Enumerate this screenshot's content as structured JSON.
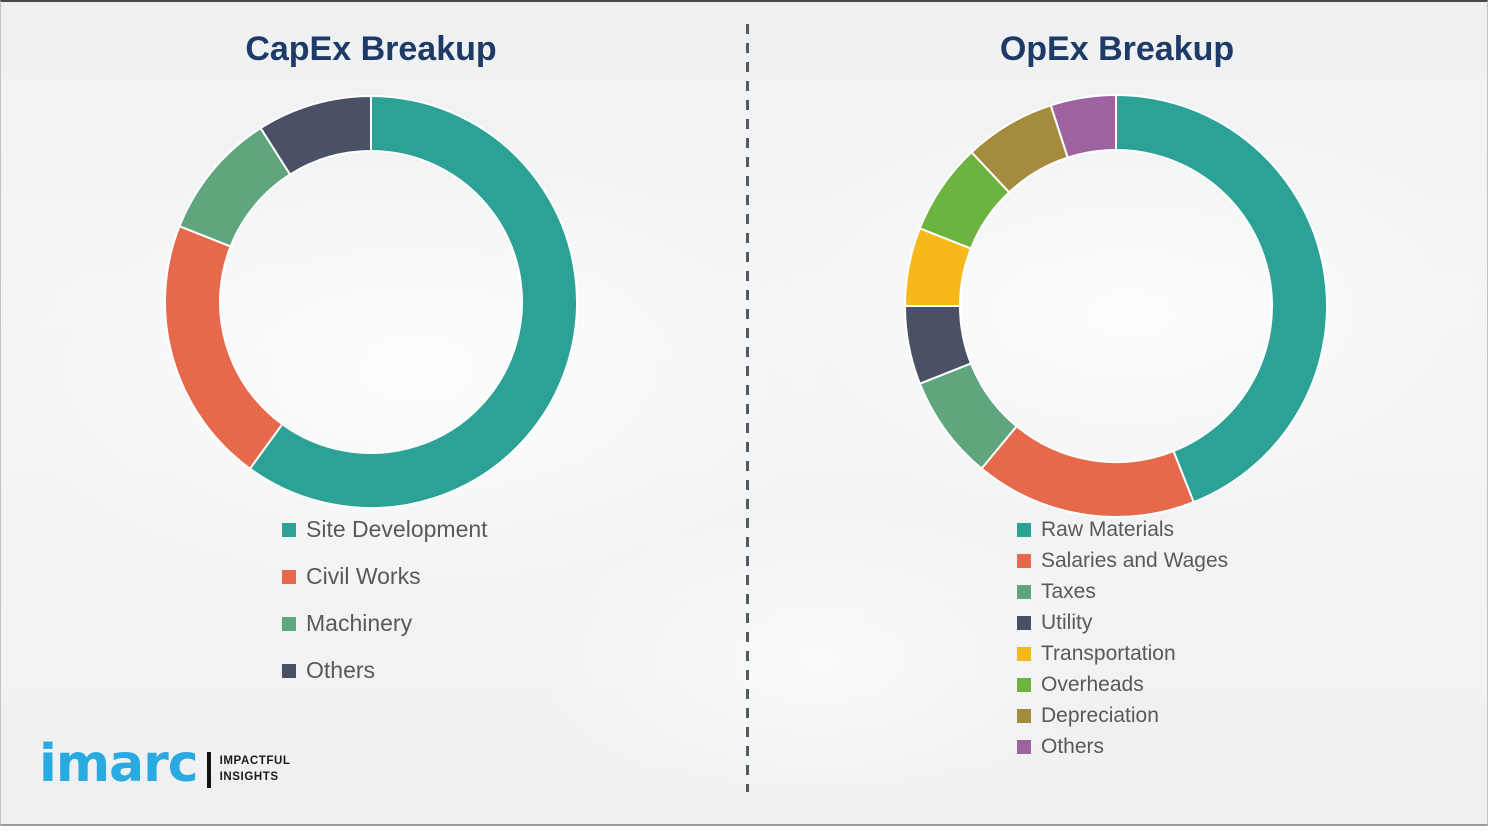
{
  "page": {
    "background_color": "#f1f3f4",
    "divider": "vertical-dashed-line",
    "divider_color": "#555a60"
  },
  "logo": {
    "brand": "imarc",
    "brand_color": "#29abe2",
    "tagline_line1": "IMPACTFUL",
    "tagline_line2": "INSIGHTS"
  },
  "colors": {
    "title_text": "#1e3a67",
    "legend_text": "#595959",
    "teal": "#2ba295",
    "orange": "#e7694b",
    "sea_green": "#5fa57d",
    "navy": "#4a5066",
    "yellow": "#f7b81c",
    "green": "#6cb33f",
    "olive": "#a58b3e",
    "purple": "#9c63a0"
  },
  "chart_data": [
    {
      "type": "pie",
      "subtype": "donut",
      "title": "CapEx Breakup",
      "categories": [
        "Site Development",
        "Civil Works",
        "Machinery",
        "Others"
      ],
      "values": [
        60,
        21,
        10,
        9
      ],
      "unit": "percent-estimated",
      "colors": [
        "#2ba295",
        "#e7694b",
        "#5fa57d",
        "#4a5066"
      ],
      "start_angle_deg": 0,
      "direction": "clockwise",
      "legend_position": "below-left",
      "data_labels": false
    },
    {
      "type": "pie",
      "subtype": "donut",
      "title": "OpEx Breakup",
      "categories": [
        "Raw Materials",
        "Salaries and Wages",
        "Taxes",
        "Utility",
        "Transportation",
        "Overheads",
        "Depreciation",
        "Others"
      ],
      "values": [
        44,
        17,
        8,
        6,
        6,
        7,
        7,
        5
      ],
      "unit": "percent-estimated",
      "colors": [
        "#2ba295",
        "#e7694b",
        "#5fa57d",
        "#4a5066",
        "#f7b81c",
        "#6cb33f",
        "#a58b3e",
        "#9c63a0"
      ],
      "start_angle_deg": 0,
      "direction": "clockwise",
      "legend_position": "below-left",
      "data_labels": false
    }
  ]
}
